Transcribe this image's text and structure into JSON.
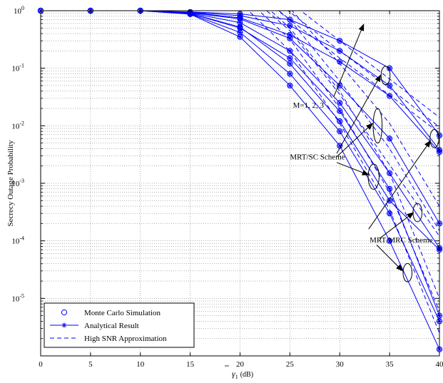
{
  "chart_data": {
    "type": "line",
    "title": "",
    "xlabel_sym": "γ",
    "xlabel_sub": "1",
    "xlabel_unit": "(dB)",
    "ylabel": "Secrecy Outage Probability",
    "xlim": [
      0,
      40
    ],
    "ylim": [
      1e-06,
      1
    ],
    "yscale": "log",
    "grid": true,
    "legend_position": "bottom-left",
    "x_ticks": [
      "0",
      "5",
      "10",
      "15",
      "20",
      "25",
      "30",
      "35",
      "40"
    ],
    "y_ticks": [
      {
        "base": "10",
        "exp": "0"
      },
      {
        "base": "10",
        "exp": "-1"
      },
      {
        "base": "10",
        "exp": "-2"
      },
      {
        "base": "10",
        "exp": "-3"
      },
      {
        "base": "10",
        "exp": "-4"
      },
      {
        "base": "10",
        "exp": "-5"
      }
    ],
    "color": "#0000ff",
    "legend": [
      {
        "label": "Monte Carlo Simulation",
        "style": "circle"
      },
      {
        "label": "Analytical Result",
        "style": "star"
      },
      {
        "label": "High SNR Approximation",
        "style": "dashed"
      }
    ],
    "x": [
      0,
      5,
      10,
      15,
      20,
      25,
      30,
      35,
      40
    ],
    "series": [
      {
        "y": [
          1,
          1,
          1,
          0.95,
          0.88,
          0.7,
          0.3,
          0.1,
          0.0068
        ],
        "approx_x": [
          20,
          25,
          30,
          35,
          40
        ],
        "approx_y": [
          6,
          1.4,
          0.3,
          0.065,
          0.014
        ]
      },
      {
        "y": [
          1,
          1,
          1,
          0.94,
          0.82,
          0.55,
          0.2,
          0.05,
          0.0038
        ],
        "approx_x": [
          20,
          25,
          30,
          35,
          40
        ],
        "approx_y": [
          4,
          0.95,
          0.2,
          0.045,
          0.0095
        ]
      },
      {
        "y": [
          1,
          1,
          1,
          0.93,
          0.75,
          0.38,
          0.13,
          0.033,
          0.0035
        ],
        "approx_x": [
          20,
          25,
          30,
          35,
          40
        ],
        "approx_y": [
          3,
          0.7,
          0.15,
          0.034,
          0.0075
        ]
      },
      {
        "y": [
          1,
          1,
          1,
          0.92,
          0.72,
          0.33,
          0.05,
          0.006,
          0.0002
        ],
        "approx_x": [
          20,
          25,
          30,
          35,
          40
        ],
        "approx_y": [
          5,
          1.1,
          0.12,
          0.011,
          0.0004
        ]
      },
      {
        "y": [
          1,
          1,
          1,
          0.91,
          0.62,
          0.2,
          0.025,
          0.0015,
          7.5e-05
        ],
        "approx_x": [
          20,
          25,
          30,
          35,
          40
        ],
        "approx_y": [
          3.5,
          0.7,
          0.06,
          0.004,
          0.00015
        ]
      },
      {
        "y": [
          1,
          1,
          1,
          0.9,
          0.52,
          0.12,
          0.012,
          0.0005,
          7e-05
        ],
        "approx_x": [
          20,
          25,
          30,
          35,
          40
        ],
        "approx_y": [
          2.5,
          0.45,
          0.035,
          0.0021,
          0.00012
        ]
      },
      {
        "y": [
          1,
          1,
          1,
          0.89,
          0.5,
          0.15,
          0.018,
          0.0008,
          5e-06
        ],
        "approx_x": [
          20,
          25,
          30,
          35,
          40
        ],
        "approx_y": [
          3,
          0.5,
          0.04,
          0.0015,
          1e-05
        ]
      },
      {
        "y": [
          1,
          1,
          1,
          0.88,
          0.42,
          0.08,
          0.008,
          0.0003,
          4e-06
        ],
        "approx_x": [
          20,
          25,
          30,
          35,
          40
        ],
        "approx_y": [
          2,
          0.32,
          0.02,
          0.0007,
          6e-06
        ]
      },
      {
        "y": [
          1,
          1,
          1,
          0.87,
          0.35,
          0.05,
          0.0045,
          0.0001,
          1.3e-06
        ],
        "approx_x": [
          20,
          25,
          30,
          35,
          40
        ],
        "approx_y": [
          1.4,
          0.2,
          0.011,
          0.00035,
          2.5e-06
        ]
      }
    ],
    "ellipses": [
      {
        "x": 34.6,
        "y": 0.075,
        "rx_data": 0.45,
        "ry_decades": 0.16
      },
      {
        "x": 33.8,
        "y": 0.01,
        "rx_data": 0.45,
        "ry_decades": 0.3
      },
      {
        "x": 33.4,
        "y": 0.0013,
        "rx_data": 0.55,
        "ry_decades": 0.22
      },
      {
        "x": 39.5,
        "y": 0.006,
        "rx_data": 0.45,
        "ry_decades": 0.16
      },
      {
        "x": 37.8,
        "y": 0.00031,
        "rx_data": 0.45,
        "ry_decades": 0.16
      },
      {
        "x": 36.8,
        "y": 2.8e-05,
        "rx_data": 0.45,
        "ry_decades": 0.16
      }
    ],
    "annotations": [
      {
        "id": "m",
        "text": "M=1, 2, 3",
        "x": 25.3,
        "y": 0.023
      },
      {
        "id": "sc",
        "text": "MRT/SC Scheme",
        "x": 25.0,
        "y": 0.0029
      },
      {
        "id": "mrc",
        "text": "MRT/MRC Scheme",
        "x": 33.0,
        "y": 0.000105
      }
    ],
    "arrows": [
      {
        "from": [
          29.4,
          0.032
        ],
        "to": [
          32.4,
          0.58
        ]
      },
      {
        "from": [
          29.7,
          0.0033
        ],
        "to": [
          34.1,
          0.076
        ]
      },
      {
        "from": [
          29.7,
          0.0029
        ],
        "to": [
          33.3,
          0.011
        ]
      },
      {
        "from": [
          29.7,
          0.0023
        ],
        "to": [
          32.9,
          0.0014
        ]
      },
      {
        "from": [
          32.9,
          0.00016
        ],
        "to": [
          39.1,
          0.0055
        ]
      },
      {
        "from": [
          34.0,
          0.00011
        ],
        "to": [
          37.4,
          0.00031
        ]
      },
      {
        "from": [
          33.7,
          8.5e-05
        ],
        "to": [
          36.3,
          3e-05
        ]
      }
    ]
  }
}
